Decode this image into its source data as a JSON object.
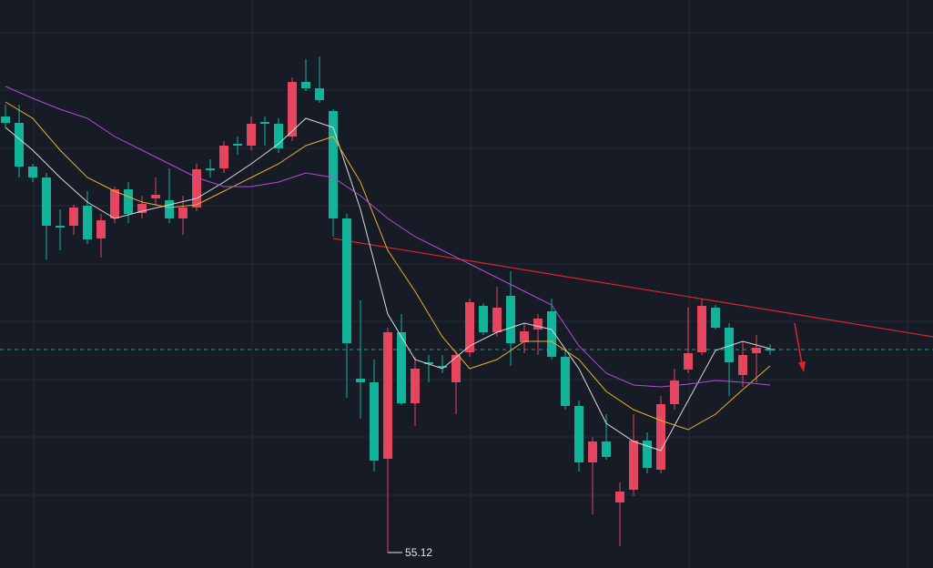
{
  "chart_data": {
    "type": "candlestick",
    "xlim": [
      -0.4,
      67.93
    ],
    "ylim": [
      54.95,
      61.19
    ],
    "up_color": "#e4455f",
    "down_color": "#12b39b",
    "open": [
      59.91,
      59.84,
      59.36,
      59.24,
      58.71,
      58.71,
      58.93,
      58.57,
      58.79,
      59.11,
      58.85,
      59.01,
      58.99,
      58.79,
      58.91,
      59.34,
      59.34,
      59.61,
      59.59,
      59.85,
      59.83,
      59.69,
      60.29,
      60.22,
      59.97,
      58.79,
      57.03,
      56.99,
      56.15,
      57.54,
      56.76,
      57.21,
      57.17,
      56.99,
      57.32,
      57.83,
      57.54,
      57.94,
      57.43,
      57.57,
      57.77,
      57.27,
      56.73,
      56.11,
      56.34,
      55.67,
      55.81,
      56.35,
      56.03,
      56.75,
      57.13,
      57.32,
      57.81,
      57.59,
      57.07,
      57.31,
      57.36
    ],
    "high": [
      60.04,
      60.04,
      59.39,
      59.29,
      58.89,
      58.94,
      59.09,
      58.84,
      59.14,
      59.19,
      59.04,
      59.24,
      59.34,
      59.04,
      59.39,
      59.44,
      59.64,
      59.69,
      59.91,
      59.91,
      59.89,
      60.34,
      60.54,
      60.57,
      59.99,
      58.84,
      57.89,
      57.24,
      57.59,
      57.74,
      57.27,
      57.29,
      57.29,
      57.34,
      57.91,
      57.86,
      58.04,
      58.21,
      57.64,
      57.74,
      57.91,
      57.34,
      56.79,
      56.39,
      56.64,
      55.89,
      56.64,
      56.44,
      56.84,
      57.14,
      57.81,
      57.91,
      57.84,
      57.64,
      57.44,
      57.51,
      57.41
    ],
    "low": [
      59.79,
      59.24,
      59.19,
      58.34,
      58.44,
      58.61,
      58.51,
      58.36,
      58.74,
      58.74,
      58.79,
      58.94,
      58.74,
      58.61,
      58.87,
      59.24,
      59.29,
      59.49,
      59.54,
      59.59,
      59.51,
      59.64,
      60.19,
      60.06,
      58.59,
      56.82,
      56.59,
      56.01,
      55.12,
      56.74,
      56.51,
      56.99,
      57.09,
      56.64,
      57.27,
      57.51,
      57.49,
      57.17,
      57.31,
      57.29,
      57.24,
      56.69,
      56.01,
      55.54,
      56.14,
      55.19,
      55.74,
      55.99,
      55.99,
      56.69,
      57.09,
      57.29,
      57.57,
      56.84,
      56.94,
      56.99,
      57.29
    ],
    "close": [
      59.84,
      59.36,
      59.24,
      58.71,
      58.69,
      58.91,
      58.56,
      58.77,
      59.11,
      58.84,
      58.95,
      59.05,
      58.79,
      58.91,
      59.33,
      59.32,
      59.59,
      59.59,
      59.83,
      59.83,
      59.56,
      60.29,
      60.22,
      60.09,
      58.79,
      57.42,
      56.99,
      56.13,
      57.54,
      56.76,
      57.14,
      57.19,
      57.15,
      57.29,
      57.87,
      57.54,
      57.81,
      57.42,
      57.55,
      57.69,
      57.27,
      56.73,
      56.11,
      56.34,
      56.17,
      55.79,
      56.35,
      56.05,
      56.75,
      57.01,
      57.31,
      57.83,
      57.59,
      57.21,
      57.29,
      57.37,
      57.34
    ],
    "lines": [
      {
        "color": "#d9d9d9",
        "x": [
          0,
          2,
          4,
          6,
          8,
          10,
          12,
          14,
          16,
          18,
          20,
          22,
          24,
          26,
          28,
          30,
          32,
          34,
          36,
          38,
          40,
          42,
          44,
          46,
          48,
          50,
          52,
          54,
          56
        ],
        "values": [
          59.79,
          59.54,
          59.24,
          58.97,
          58.79,
          58.87,
          58.94,
          59.01,
          59.19,
          59.39,
          59.61,
          59.89,
          59.79,
          58.89,
          57.74,
          57.24,
          57.14,
          57.39,
          57.54,
          57.64,
          57.57,
          57.14,
          56.54,
          56.34,
          56.24,
          56.79,
          57.34,
          57.44,
          57.36
        ]
      },
      {
        "color": "#e6b12b",
        "x": [
          0,
          2,
          4,
          6,
          8,
          10,
          12,
          14,
          16,
          18,
          20,
          22,
          24,
          26,
          28,
          30,
          32,
          34,
          36,
          38,
          40,
          42,
          44,
          46,
          48,
          50,
          52,
          54,
          56
        ],
        "values": [
          60.07,
          59.89,
          59.54,
          59.24,
          59.09,
          58.97,
          58.91,
          58.94,
          59.09,
          59.24,
          59.39,
          59.59,
          59.69,
          59.19,
          58.44,
          57.99,
          57.49,
          57.14,
          57.24,
          57.44,
          57.44,
          57.24,
          56.89,
          56.69,
          56.57,
          56.47,
          56.64,
          56.91,
          57.17
        ]
      },
      {
        "color": "#b24fcf",
        "x": [
          0,
          2,
          4,
          6,
          8,
          10,
          12,
          14,
          16,
          18,
          20,
          22,
          24,
          26,
          28,
          30,
          32,
          34,
          36,
          38,
          40,
          42,
          44,
          46,
          48,
          50,
          52,
          54,
          56
        ],
        "values": [
          60.24,
          60.11,
          59.99,
          59.89,
          59.69,
          59.54,
          59.39,
          59.24,
          59.14,
          59.14,
          59.19,
          59.29,
          59.24,
          59.04,
          58.79,
          58.59,
          58.44,
          58.29,
          58.14,
          57.99,
          57.84,
          57.39,
          57.09,
          56.96,
          56.94,
          56.97,
          57.01,
          56.99,
          56.96
        ]
      }
    ],
    "trendline": {
      "color": "#d9262e",
      "x": [
        24,
        67.93
      ],
      "values": [
        58.57,
        57.49
      ]
    },
    "price_line": 57.35,
    "min_label": 55.12
  }
}
